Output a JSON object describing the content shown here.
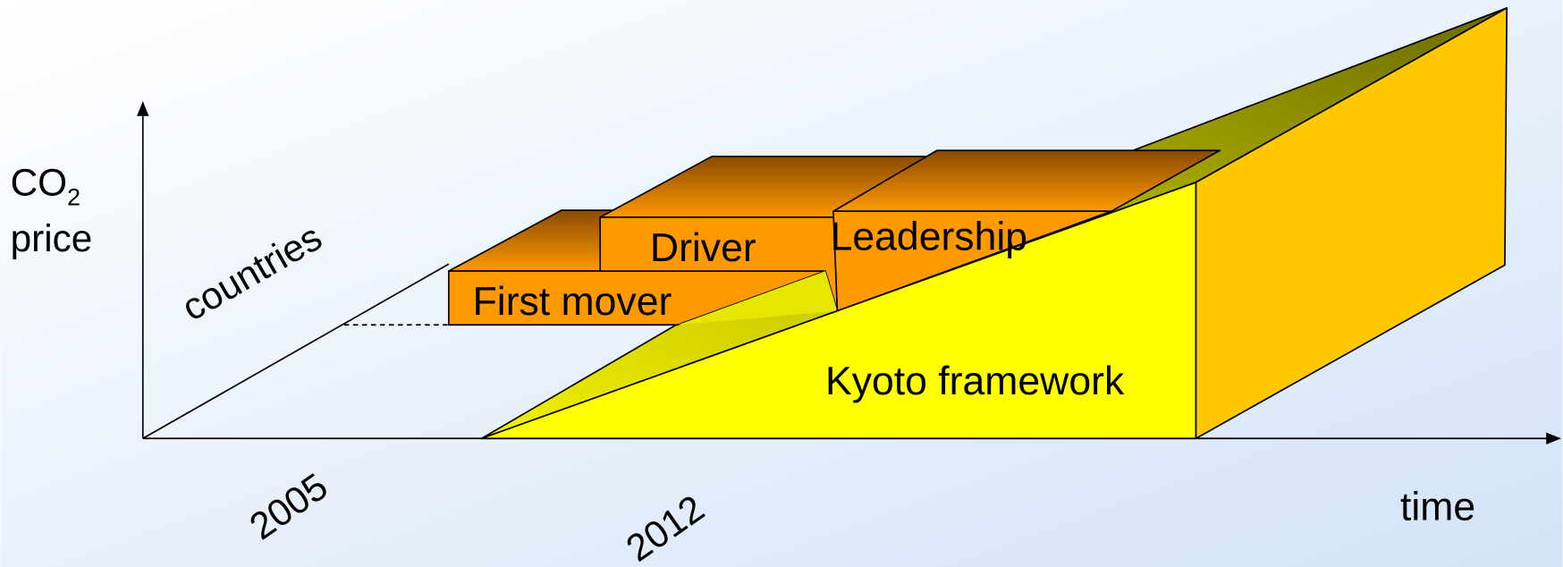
{
  "y_axis_label": {
    "main": "CO",
    "subscript": "2",
    "line2": "price"
  },
  "depth_axis_label": "countries",
  "x_axis_label": "time",
  "x_markers": [
    "2005",
    "2012"
  ],
  "blocks": [
    {
      "label": "First mover"
    },
    {
      "label": "Driver"
    },
    {
      "label": "Leadership"
    }
  ],
  "base": {
    "label": "Kyoto framework"
  }
}
